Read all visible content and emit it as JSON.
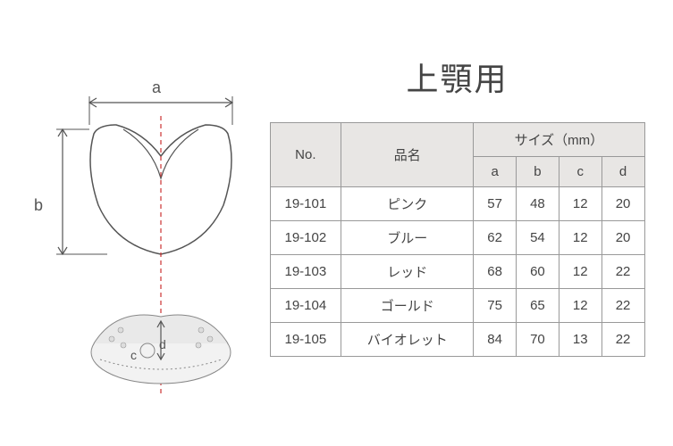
{
  "title": "上顎用",
  "diagram": {
    "labels": {
      "a": "a",
      "b": "b",
      "c": "c",
      "d": "d"
    }
  },
  "table": {
    "headers": {
      "no": "No.",
      "name": "品名",
      "size_group": "サイズ（mm）",
      "a": "a",
      "b": "b",
      "c": "c",
      "d": "d"
    },
    "rows": [
      {
        "no": "19-101",
        "name": "ピンク",
        "a": 57,
        "b": 48,
        "c": 12,
        "d": 20
      },
      {
        "no": "19-102",
        "name": "ブルー",
        "a": 62,
        "b": 54,
        "c": 12,
        "d": 20
      },
      {
        "no": "19-103",
        "name": "レッド",
        "a": 68,
        "b": 60,
        "c": 12,
        "d": 22
      },
      {
        "no": "19-104",
        "name": "ゴールド",
        "a": 75,
        "b": 65,
        "c": 12,
        "d": 22
      },
      {
        "no": "19-105",
        "name": "バイオレット",
        "a": 84,
        "b": 70,
        "c": 13,
        "d": 22
      }
    ]
  },
  "style": {
    "stroke": "#555555",
    "dash": "#cc3333",
    "header_bg": "#e8e6e4",
    "text": "#444444"
  }
}
